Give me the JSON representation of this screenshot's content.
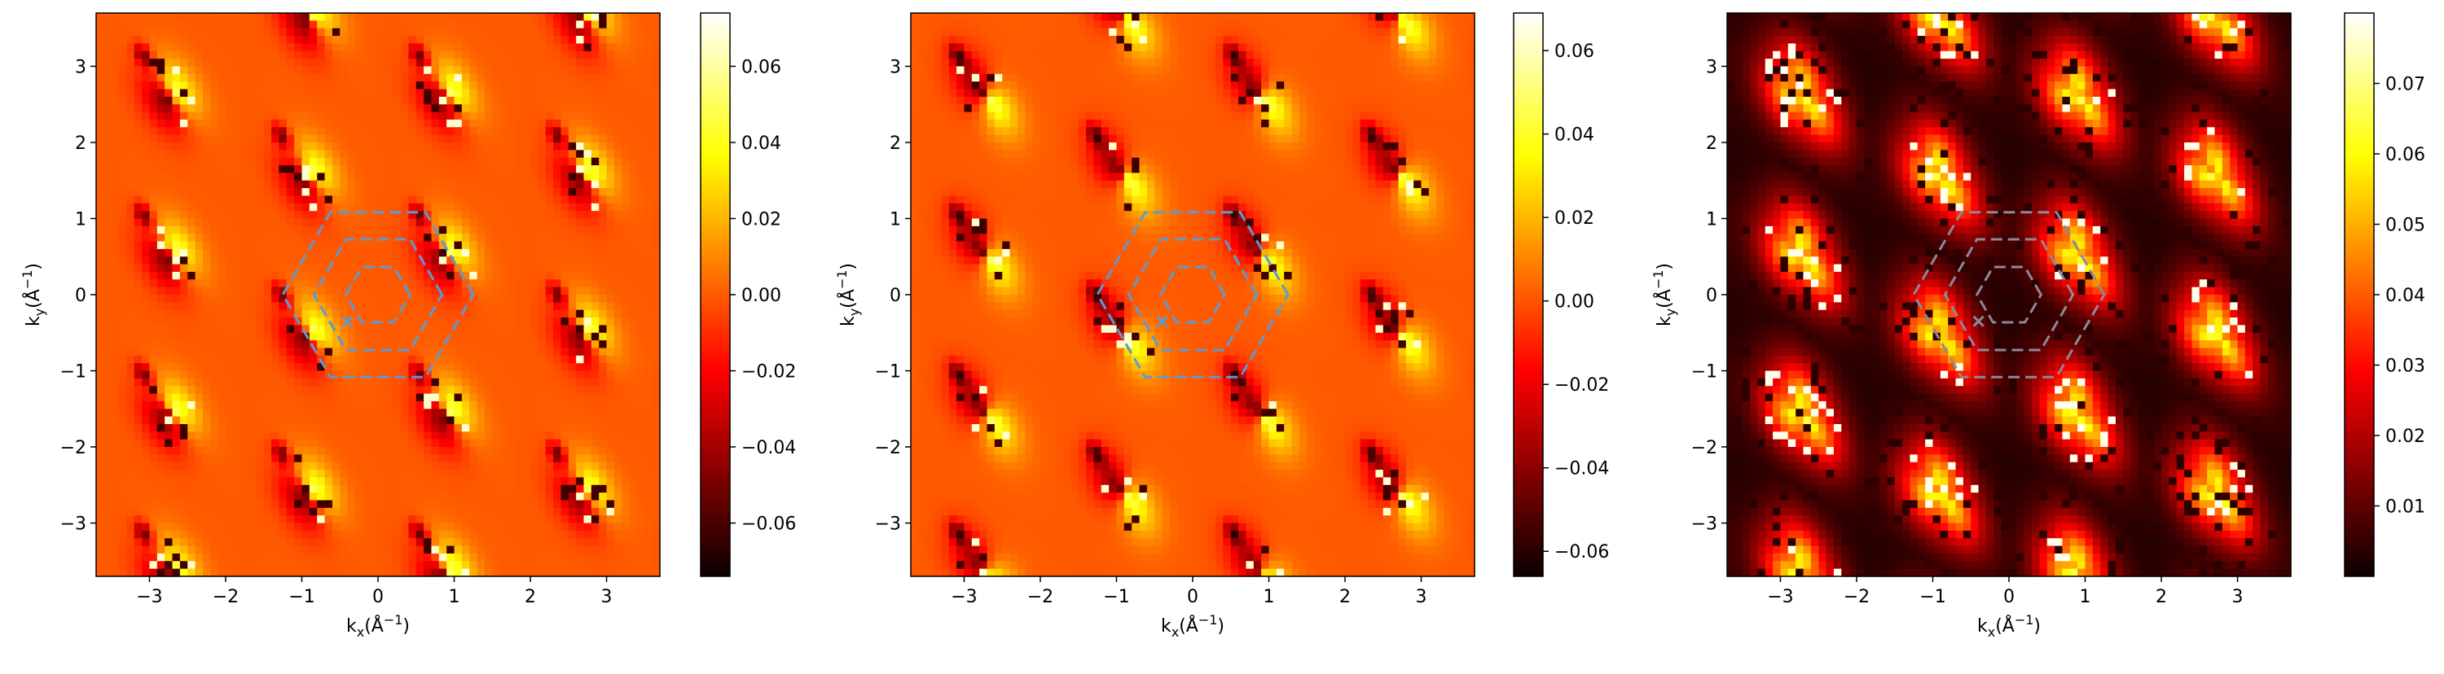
{
  "chart_data": [
    {
      "type": "heatmap",
      "panel": "left",
      "colormap": "hot",
      "xlabel": "k_x(Å^-1)",
      "ylabel": "k_y(Å^-1)",
      "xlim": [
        -3.7,
        3.7
      ],
      "ylim": [
        -3.7,
        3.7
      ],
      "xticks": [
        -3,
        -2,
        -1,
        0,
        1,
        2,
        3
      ],
      "yticks": [
        -3,
        -2,
        -1,
        0,
        1,
        2,
        3
      ],
      "xtick_labels": [
        "−3",
        "−2",
        "−1",
        "0",
        "1",
        "2",
        "3"
      ],
      "ytick_labels": [
        "−3",
        "−2",
        "−1",
        "0",
        "1",
        "2",
        "3"
      ],
      "colorbar": {
        "range": [
          -0.074,
          0.074
        ],
        "ticks": [
          -0.06,
          -0.04,
          -0.02,
          0.0,
          0.02,
          0.04,
          0.06
        ],
        "tick_labels": [
          "−0.06",
          "−0.04",
          "−0.02",
          "0.00",
          "0.02",
          "0.04",
          "0.06"
        ]
      },
      "overlay": {
        "hexagon_circumradii": [
          0.42,
          0.84,
          1.25
        ],
        "hexagon_color": "#5a9bd5",
        "marker": {
          "symbol": "x",
          "x": -0.4,
          "y": -0.35
        }
      }
    },
    {
      "type": "heatmap",
      "panel": "middle",
      "colormap": "hot",
      "xlabel": "k_x(Å^-1)",
      "ylabel": "k_y(Å^-1)",
      "xlim": [
        -3.7,
        3.7
      ],
      "ylim": [
        -3.7,
        3.7
      ],
      "xticks": [
        -3,
        -2,
        -1,
        0,
        1,
        2,
        3
      ],
      "yticks": [
        -3,
        -2,
        -1,
        0,
        1,
        2,
        3
      ],
      "xtick_labels": [
        "−3",
        "−2",
        "−1",
        "0",
        "1",
        "2",
        "3"
      ],
      "ytick_labels": [
        "−3",
        "−2",
        "−1",
        "0",
        "1",
        "2",
        "3"
      ],
      "colorbar": {
        "range": [
          -0.066,
          0.069
        ],
        "ticks": [
          -0.06,
          -0.04,
          -0.02,
          0.0,
          0.02,
          0.04,
          0.06
        ],
        "tick_labels": [
          "−0.06",
          "−0.04",
          "−0.02",
          "0.00",
          "0.02",
          "0.04",
          "0.06"
        ]
      },
      "overlay": {
        "hexagon_circumradii": [
          0.42,
          0.84,
          1.25
        ],
        "hexagon_color": "#5a9bd5",
        "marker": {
          "symbol": "x",
          "x": -0.4,
          "y": -0.35
        }
      }
    },
    {
      "type": "heatmap",
      "panel": "right",
      "colormap": "hot",
      "xlabel": "k_x(Å^-1)",
      "ylabel": "k_y(Å^-1)",
      "xlim": [
        -3.7,
        3.7
      ],
      "ylim": [
        -3.7,
        3.7
      ],
      "xticks": [
        -3,
        -2,
        -1,
        0,
        1,
        2,
        3
      ],
      "yticks": [
        -3,
        -2,
        -1,
        0,
        1,
        2,
        3
      ],
      "xtick_labels": [
        "−3",
        "−2",
        "−1",
        "0",
        "1",
        "2",
        "3"
      ],
      "ytick_labels": [
        "−3",
        "−2",
        "−1",
        "0",
        "1",
        "2",
        "3"
      ],
      "colorbar": {
        "range": [
          0.0,
          0.08
        ],
        "ticks": [
          0.01,
          0.02,
          0.03,
          0.04,
          0.05,
          0.06,
          0.07
        ],
        "tick_labels": [
          "0.01",
          "0.02",
          "0.03",
          "0.04",
          "0.05",
          "0.06",
          "0.07"
        ]
      },
      "overlay": {
        "hexagon_circumradii": [
          0.42,
          0.84,
          1.25
        ],
        "hexagon_color": "#8a8a9a",
        "marker": {
          "symbol": "x",
          "x": -0.4,
          "y": -0.35
        }
      }
    }
  ]
}
